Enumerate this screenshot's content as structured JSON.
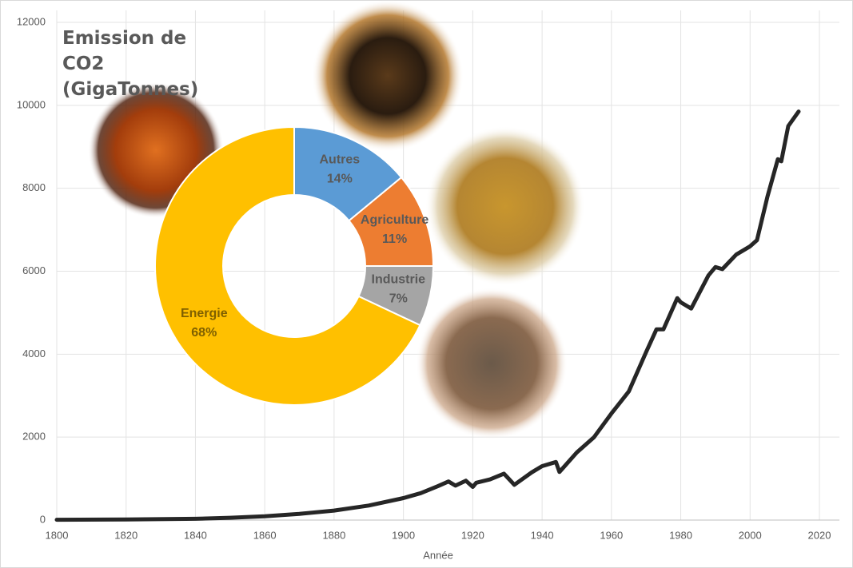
{
  "chart_data": [
    {
      "type": "line",
      "x_label": "Année",
      "x": [
        1800,
        1820,
        1840,
        1850,
        1860,
        1870,
        1880,
        1890,
        1900,
        1905,
        1910,
        1913,
        1915,
        1918,
        1920,
        1921,
        1925,
        1929,
        1932,
        1937,
        1940,
        1944,
        1945,
        1950,
        1955,
        1960,
        1965,
        1970,
        1973,
        1975,
        1979,
        1980,
        1983,
        1988,
        1990,
        1992,
        1996,
        2000,
        2002,
        2005,
        2008,
        2009,
        2011,
        2014
      ],
      "values": [
        8,
        14,
        30,
        55,
        90,
        150,
        230,
        350,
        530,
        650,
        820,
        930,
        830,
        950,
        800,
        900,
        980,
        1120,
        850,
        1150,
        1300,
        1400,
        1160,
        1630,
        2000,
        2570,
        3100,
        4050,
        4600,
        4600,
        5350,
        5250,
        5100,
        5900,
        6100,
        6050,
        6400,
        6600,
        6750,
        7800,
        8700,
        8650,
        9500,
        9850
      ],
      "color": "#262626",
      "xlim": [
        1800,
        2020
      ],
      "xticks": [
        1800,
        1820,
        1840,
        1860,
        1880,
        1900,
        1920,
        1940,
        1960,
        1980,
        2000,
        2020
      ],
      "ylim": [
        0,
        12000
      ],
      "yticks": [
        0,
        2000,
        4000,
        6000,
        8000,
        10000,
        12000
      ],
      "grid": true
    },
    {
      "type": "pie",
      "title": "Emission de CO2 (GigaTonnes)",
      "categories": [
        "Autres",
        "Agriculture",
        "Industrie",
        "Energie"
      ],
      "values": [
        14,
        11,
        7,
        68
      ],
      "value_labels": [
        "14%",
        "11%",
        "7%",
        "68%"
      ],
      "colors": [
        "#5b9bd5",
        "#ed7d31",
        "#a5a5a5",
        "#ffc000"
      ],
      "donut": true
    }
  ]
}
